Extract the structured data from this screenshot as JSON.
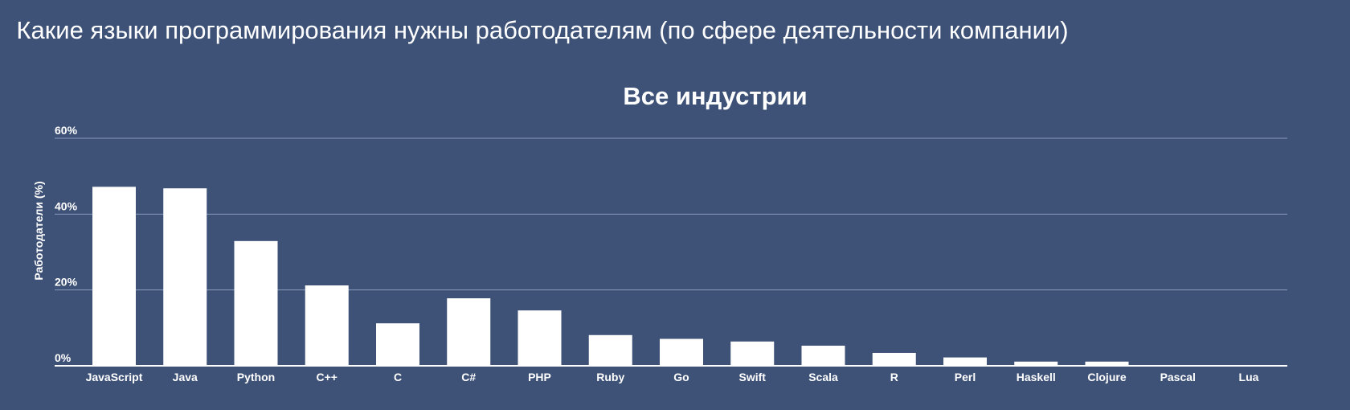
{
  "slide": {
    "title": "Какие языки программирования нужны работодателям (по сфере деятельности компании)"
  },
  "colors": {
    "background": "#3e5278",
    "bars": "#ffffff",
    "gridlines": "#8a9abb"
  },
  "chart_data": {
    "type": "bar",
    "title": "Все индустрии",
    "xlabel": "",
    "ylabel": "Работодатели (%)",
    "ylim": [
      0,
      60
    ],
    "yticks": [
      0,
      20,
      40,
      60
    ],
    "ytick_labels": [
      "0%",
      "20%",
      "40%",
      "60%"
    ],
    "grid": true,
    "categories": [
      "JavaScript",
      "Java",
      "Python",
      "C++",
      "C",
      "C#",
      "PHP",
      "Ruby",
      "Go",
      "Swift",
      "Scala",
      "R",
      "Perl",
      "Haskell",
      "Clojure",
      "Pascal",
      "Lua"
    ],
    "values": [
      47.2,
      46.8,
      32.9,
      21.2,
      11.2,
      17.8,
      14.6,
      8.1,
      7.1,
      6.4,
      5.3,
      3.4,
      2.2,
      1.1,
      1.1,
      0.2,
      0.2
    ]
  }
}
